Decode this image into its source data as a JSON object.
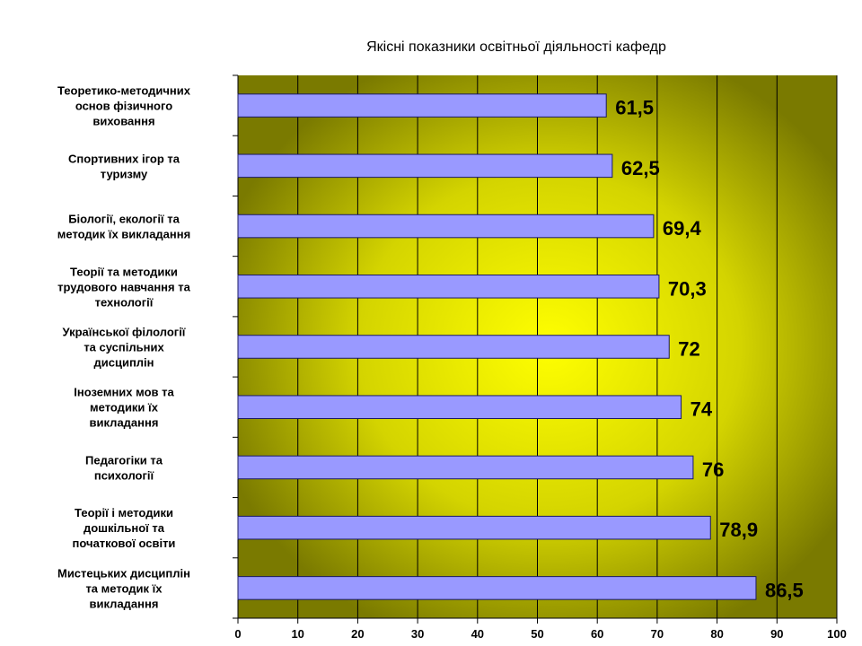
{
  "chart_data": {
    "type": "bar",
    "orientation": "horizontal",
    "title": "Якісні показники  освітньої діяльності кафедр",
    "categories": [
      "Теоретико-методичних основ фізичного виховання",
      "Спортивних ігор та туризму",
      "Біології, екології та методик їх викладання",
      "Теорії та методики трудового навчання та технології",
      "Української філології та суспільних дисциплін",
      "Іноземних мов та методики їх викладання",
      "Педагогіки та психології",
      "Теорії і методики дошкільної та початкової освіти",
      "Мистецьких дисциплін та методик їх викладання"
    ],
    "category_lines": [
      [
        "Теоретико-методичних",
        "основ фізичного",
        "виховання"
      ],
      [
        "Спортивних ігор та",
        "туризму"
      ],
      [
        "Біології, екології та",
        "методик їх викладання"
      ],
      [
        "Теорії та методики",
        "трудового навчання та",
        "технології"
      ],
      [
        "Української філології",
        "та суспільних",
        "дисциплін"
      ],
      [
        "Іноземних мов та",
        "методики їх",
        "викладання"
      ],
      [
        "Педагогіки та",
        "психології"
      ],
      [
        "Теорії і методики",
        "дошкільної та",
        "початкової освіти"
      ],
      [
        "Мистецьких дисциплін",
        "та методик їх",
        "викладання"
      ]
    ],
    "values": [
      61.5,
      62.5,
      69.4,
      70.3,
      72,
      74,
      76,
      78.9,
      86.5
    ],
    "data_labels": [
      "61,5",
      "62,5",
      "69,4",
      "70,3",
      "72",
      "74",
      "76",
      "78,9",
      "86,5"
    ],
    "xlim": [
      0,
      100
    ],
    "x_ticks": [
      0,
      10,
      20,
      30,
      40,
      50,
      60,
      70,
      80,
      90,
      100
    ],
    "grid": true,
    "legend": "none",
    "colors": {
      "bar_fill": "#9999ff",
      "bar_stroke": "#1a1a66",
      "plot_bg_center": "#ffff00",
      "plot_bg_edge": "#808000",
      "grid_line": "#000000"
    }
  }
}
